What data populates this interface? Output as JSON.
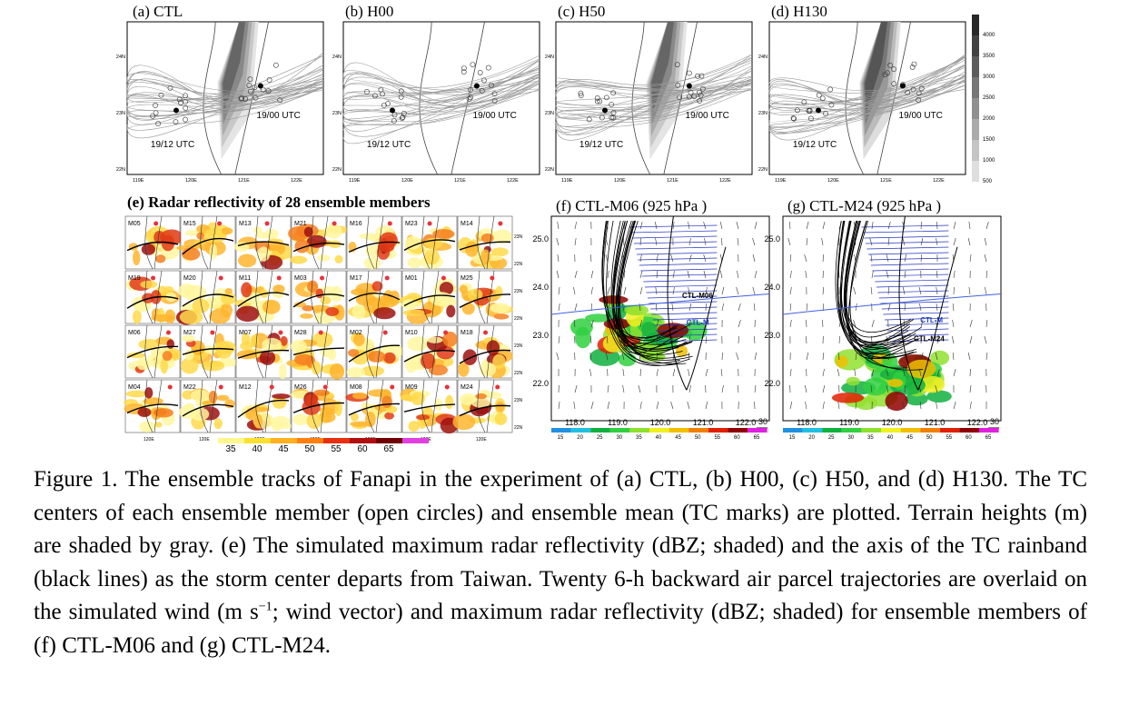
{
  "top_panels": [
    {
      "title": "(a) CTL",
      "annotations": [
        "19/00 UTC",
        "19/12 UTC"
      ]
    },
    {
      "title": "(b) H00",
      "annotations": [
        "19/00 UTC",
        "19/12 UTC"
      ]
    },
    {
      "title": "(c) H50",
      "annotations": [
        "19/00 UTC",
        "19/12 UTC"
      ]
    },
    {
      "title": "(d) H130",
      "annotations": [
        "19/00 UTC",
        "19/12 UTC"
      ]
    }
  ],
  "top_xticks": [
    "119E",
    "120E",
    "121E",
    "122E"
  ],
  "top_yticks": [
    "24N",
    "23N",
    "22N"
  ],
  "terrain_colorbar": [
    "4000",
    "3500",
    "3000",
    "2500",
    "2000",
    "1500",
    "1000",
    "500"
  ],
  "panel_e": {
    "title": "(e) Radar reflectivity  of 28 ensemble members",
    "members": [
      "M05",
      "M15",
      "M13",
      "M21",
      "M16",
      "M23",
      "M14",
      "M19",
      "M20",
      "M11",
      "M03",
      "M17",
      "M01",
      "M25",
      "M06",
      "M27",
      "M07",
      "M28",
      "M02",
      "M10",
      "M18",
      "M04",
      "M22",
      "M12",
      "M26",
      "M08",
      "M09",
      "M24"
    ],
    "yticks": [
      "23N",
      "22N"
    ],
    "xtick": "120E",
    "colorbar": [
      "35",
      "40",
      "45",
      "50",
      "55",
      "60",
      "65"
    ]
  },
  "wind_panels": [
    {
      "title": "(f) CTL-M06  (925 hPa )",
      "labels": [
        "CTL-M06",
        "CTL-M"
      ]
    },
    {
      "title": "(g) CTL-M24 (925 hPa )",
      "labels": [
        "CTL-M",
        "CTL-M24"
      ]
    }
  ],
  "wind_yticks": [
    "25.0",
    "24.0",
    "23.0",
    "22.0"
  ],
  "wind_xticks": [
    "118.0",
    "119.0",
    "120.0",
    "121.0",
    "122.0"
  ],
  "vector_ref": "30",
  "wind_colorbar": [
    "15",
    "20",
    "25",
    "30",
    "35",
    "40",
    "45",
    "50",
    "55",
    "60",
    "65"
  ],
  "caption": [
    "Figure 1. The ensemble tracks of Fanapi in the experiment of (a) CTL, (b) H00, (c) H50, and (d) H130. The TC centers of each ensemble member (open circles) and ensemble mean (TC marks) are plotted. Terrain heights (m) are shaded by gray. (e) The simulated maximum radar reflectivity (dBZ; shaded) and the axis of the TC rainband (black lines) as the storm center departs from Taiwan. Twenty 6-h backward air parcel trajectories are overlaid on the simulated wind (m s",
    "−1",
    "; wind vector) and maximum radar reflectivity (dBZ; shaded) for ensemble members of (f) CTL-M06 and (g) CTL-M24."
  ]
}
